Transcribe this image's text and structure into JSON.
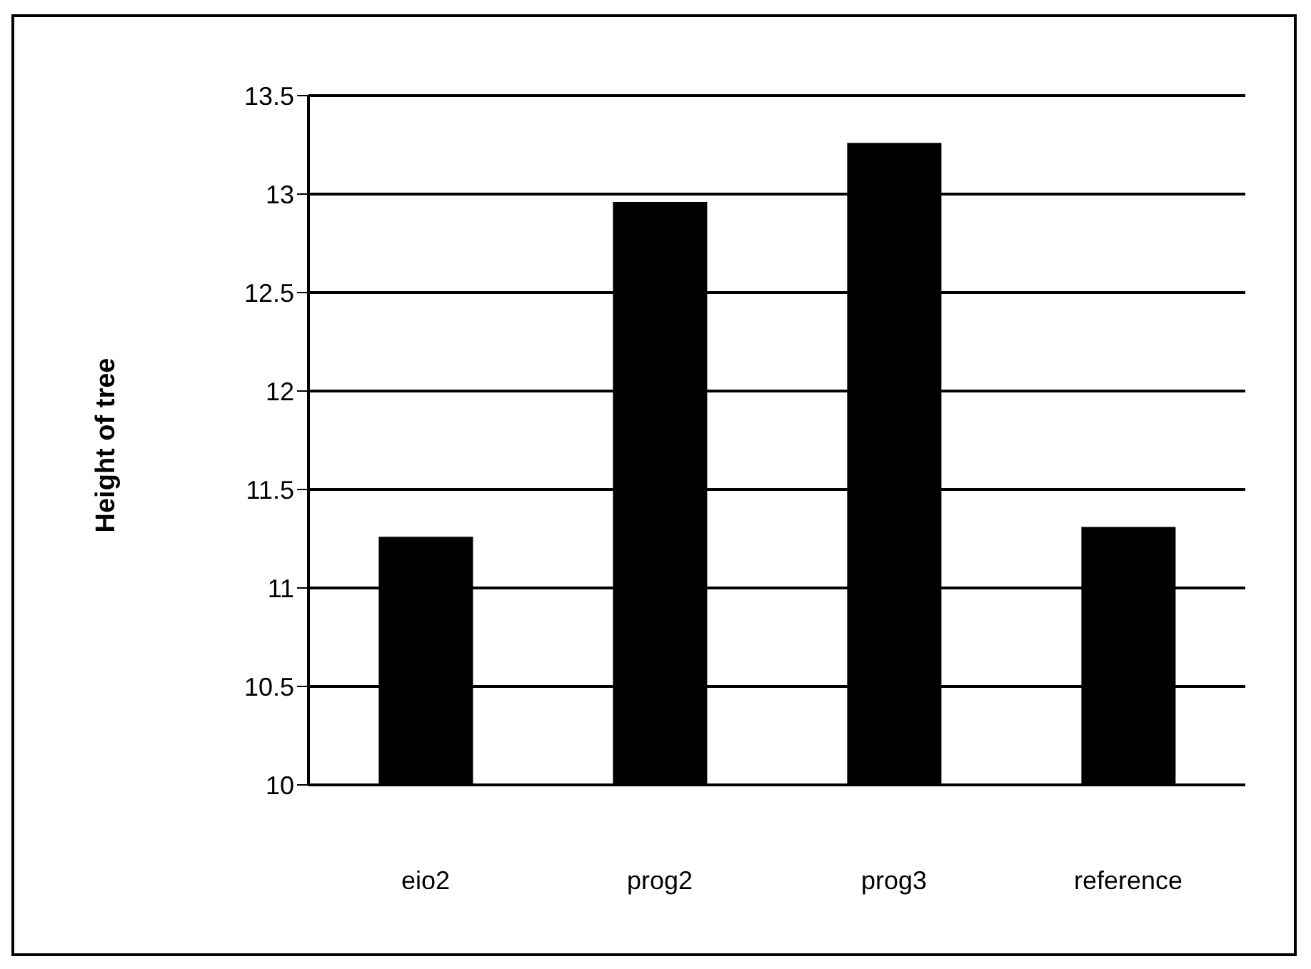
{
  "chart_data": {
    "type": "bar",
    "ylabel": "Height of tree",
    "categories": [
      "eio2",
      "prog2",
      "prog3",
      "reference"
    ],
    "values": [
      11.26,
      12.96,
      13.26,
      11.31
    ],
    "color": "#000000",
    "ylim": [
      10,
      13.5
    ],
    "yticks": [
      10,
      10.5,
      11,
      11.5,
      12,
      12.5,
      13,
      13.5
    ],
    "grid": "y",
    "legend": false
  }
}
